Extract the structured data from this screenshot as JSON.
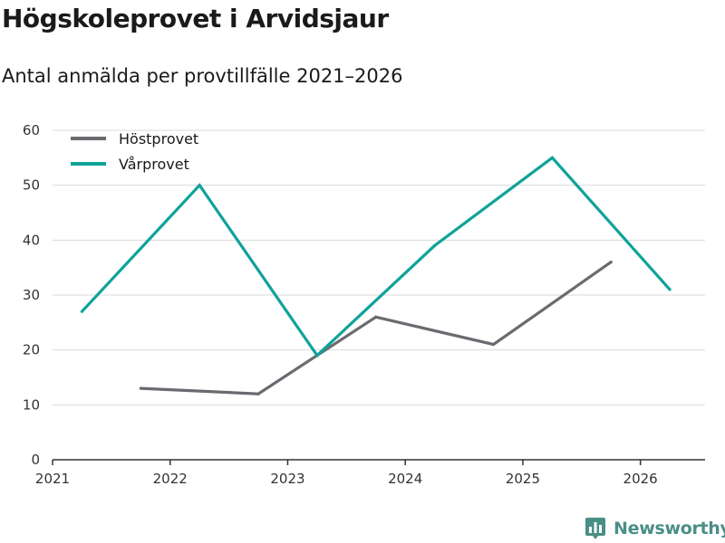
{
  "header": {
    "title": "Högskoleprovet i Arvidsjaur",
    "subtitle": "Antal anmälda per provtillfälle 2021–2026"
  },
  "brand": {
    "name": "Newsworthy",
    "icon": "newsworthy-logo-icon",
    "color": "#4a8f86"
  },
  "chart_data": {
    "type": "line",
    "title": "Högskoleprovet i Arvidsjaur",
    "subtitle": "Antal anmälda per provtillfälle 2021–2026",
    "xlabel": "",
    "ylabel": "",
    "ylim": [
      0,
      60
    ],
    "yticks": [
      0,
      10,
      20,
      30,
      40,
      50,
      60
    ],
    "xlim": [
      2021,
      2026.55
    ],
    "xticks": [
      2021,
      2022,
      2023,
      2024,
      2025,
      2026
    ],
    "grid": true,
    "legend": "top-left",
    "series": [
      {
        "name": "Höstprovet",
        "color": "#6b6a70",
        "points": [
          {
            "x": 2021.75,
            "y": 13
          },
          {
            "x": 2022.75,
            "y": 12
          },
          {
            "x": 2023.25,
            "y": 19
          },
          {
            "x": 2023.75,
            "y": 26
          },
          {
            "x": 2024.75,
            "y": 21
          },
          {
            "x": 2025.75,
            "y": 36
          }
        ]
      },
      {
        "name": "Vårprovet",
        "color": "#0fa39a",
        "points": [
          {
            "x": 2021.25,
            "y": 27
          },
          {
            "x": 2022.25,
            "y": 50
          },
          {
            "x": 2023.25,
            "y": 19
          },
          {
            "x": 2024.25,
            "y": 39
          },
          {
            "x": 2025.25,
            "y": 55
          },
          {
            "x": 2026.25,
            "y": 31
          }
        ]
      }
    ]
  }
}
